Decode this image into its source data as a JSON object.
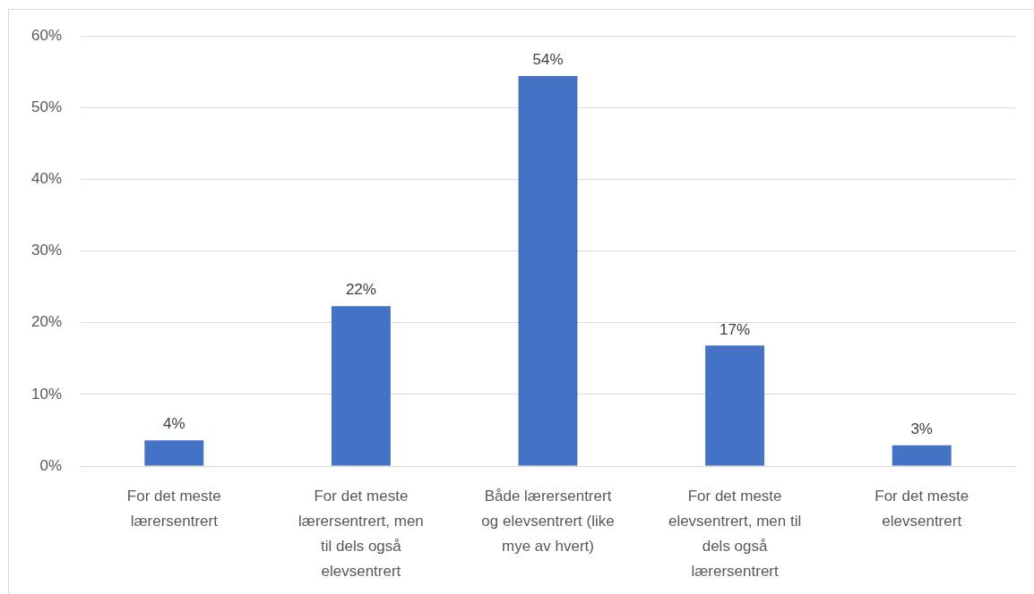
{
  "chart_data": {
    "type": "bar",
    "categories": [
      "For det meste lærersentrert",
      "For det meste lærersentrert, men til dels også elevsentrert",
      "Både lærersentrert og elevsentrert (like mye av hvert)",
      "For det meste elevsentrert, men til dels også lærersentrert",
      "For det meste elevsentrert"
    ],
    "values": [
      3.6,
      22.3,
      54.4,
      16.8,
      2.9
    ],
    "value_labels": [
      "4%",
      "22%",
      "54%",
      "17%",
      "3%"
    ],
    "color": "#4472c4",
    "ylim": [
      0,
      60
    ],
    "yticks": [
      {
        "value": 0,
        "label": "0%"
      },
      {
        "value": 10,
        "label": "10%"
      },
      {
        "value": 20,
        "label": "20%"
      },
      {
        "value": 30,
        "label": "30%"
      },
      {
        "value": 40,
        "label": "40%"
      },
      {
        "value": 50,
        "label": "50%"
      },
      {
        "value": 60,
        "label": "60%"
      }
    ],
    "grid": "y"
  }
}
